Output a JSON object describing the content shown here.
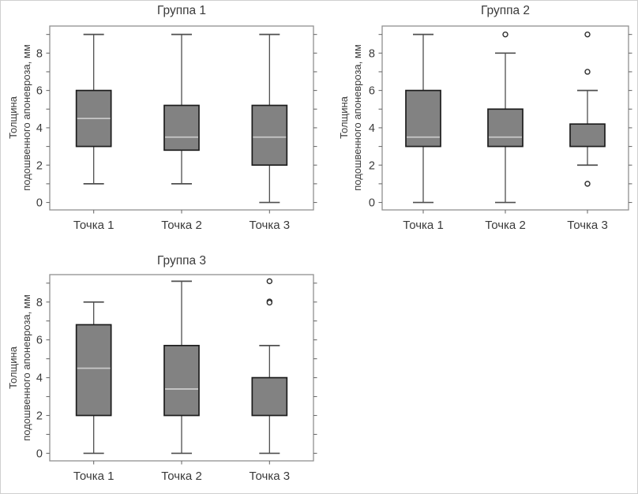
{
  "figure": {
    "background": "#ffffff",
    "border_color": "#cfcfcf"
  },
  "colors": {
    "box_fill": "#828282",
    "box_border": "#1d1d1d",
    "median": "#c8c8c8",
    "whisker": "#4f4f4f",
    "outlier_stroke": "#2e2e2e",
    "outlier_fill": "#ffffff",
    "plot_border": "#909090",
    "tick": "#6e6e6e",
    "text": "#3a3a3a"
  },
  "chart_data": [
    {
      "type": "boxplot",
      "title": "Группа 1",
      "ylabel": "Толщина подошвенного апоневроза, мм",
      "ylabel_lines": [
        "Толщина",
        "подошвенного апоневроза, мм"
      ],
      "categories": [
        "Точка 1",
        "Точка 2",
        "Точка 3"
      ],
      "ylim": [
        -0.4,
        9.45
      ],
      "yticks": [
        0,
        1,
        2,
        3,
        4,
        5,
        6,
        7,
        8,
        9
      ],
      "ytick_labeled": [
        0,
        2,
        4,
        6,
        8
      ],
      "grid": false,
      "boxes": [
        {
          "category": "Точка 1",
          "whisker_low": 1,
          "q1": 3,
          "median": 4.5,
          "q3": 6,
          "whisker_high": 9,
          "outliers": []
        },
        {
          "category": "Точка 2",
          "whisker_low": 1,
          "q1": 2.8,
          "median": 3.5,
          "q3": 5.2,
          "whisker_high": 9,
          "outliers": []
        },
        {
          "category": "Точка 3",
          "whisker_low": 0,
          "q1": 2,
          "median": 3.5,
          "q3": 5.2,
          "whisker_high": 9,
          "outliers": []
        }
      ]
    },
    {
      "type": "boxplot",
      "title": "Группа 2",
      "ylabel": "Толщина подошвенного апоневроза, мм",
      "ylabel_lines": [
        "Толщина",
        "подошвенного апоневроза, мм"
      ],
      "categories": [
        "Точка 1",
        "Точка 2",
        "Точка 3"
      ],
      "ylim": [
        -0.4,
        9.45
      ],
      "yticks": [
        0,
        1,
        2,
        3,
        4,
        5,
        6,
        7,
        8,
        9
      ],
      "ytick_labeled": [
        0,
        2,
        4,
        6,
        8
      ],
      "grid": false,
      "boxes": [
        {
          "category": "Точка 1",
          "whisker_low": 0,
          "q1": 3,
          "median": 3.5,
          "q3": 6,
          "whisker_high": 9,
          "outliers": []
        },
        {
          "category": "Точка 2",
          "whisker_low": 0,
          "q1": 3,
          "median": 3.5,
          "q3": 5,
          "whisker_high": 8,
          "outliers": [
            9
          ]
        },
        {
          "category": "Точка 3",
          "whisker_low": 2,
          "q1": 3,
          "median": 3,
          "q3": 4.2,
          "whisker_high": 6,
          "outliers": [
            9,
            7,
            1
          ]
        }
      ]
    },
    {
      "type": "boxplot",
      "title": "Группа 3",
      "ylabel": "Толщина подошвенного апоневроза, мм",
      "ylabel_lines": [
        "Толщина",
        "подошвенного апоневроза, мм"
      ],
      "categories": [
        "Точка 1",
        "Точка 2",
        "Точка 3"
      ],
      "ylim": [
        -0.4,
        9.45
      ],
      "yticks": [
        0,
        1,
        2,
        3,
        4,
        5,
        6,
        7,
        8,
        9
      ],
      "ytick_labeled": [
        0,
        2,
        4,
        6,
        8
      ],
      "grid": false,
      "boxes": [
        {
          "category": "Точка 1",
          "whisker_low": 0,
          "q1": 2,
          "median": 4.5,
          "q3": 6.8,
          "whisker_high": 8,
          "outliers": []
        },
        {
          "category": "Точка 2",
          "whisker_low": 0,
          "q1": 2,
          "median": 3.4,
          "q3": 5.7,
          "whisker_high": 9.1,
          "outliers": []
        },
        {
          "category": "Точка 3",
          "whisker_low": 0,
          "q1": 2,
          "median": 2,
          "q3": 4,
          "whisker_high": 5.7,
          "outliers": [
            9.1,
            8.03,
            7.97
          ]
        }
      ]
    }
  ]
}
